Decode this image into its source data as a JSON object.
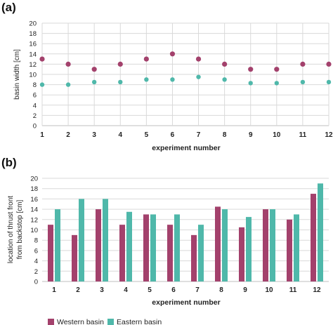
{
  "colors": {
    "western": "#a3416c",
    "eastern": "#4fb8aa"
  },
  "chart_data": [
    {
      "panel_label": "(a)",
      "type": "scatter",
      "xlabel": "experiment number",
      "ylabel": "basin width [cm]",
      "categories": [
        "1",
        "2",
        "3",
        "4",
        "5",
        "6",
        "7",
        "8",
        "9",
        "10",
        "11",
        "12"
      ],
      "ylim": [
        0,
        20
      ],
      "yticks": [
        "0",
        "2",
        "4",
        "6",
        "8",
        "10",
        "12",
        "14",
        "16",
        "18",
        "20"
      ],
      "grid": true,
      "series": [
        {
          "key": "western",
          "values": [
            13,
            12,
            11,
            12,
            13,
            14,
            13,
            12,
            11,
            11,
            12,
            12
          ]
        },
        {
          "key": "eastern",
          "values": [
            8,
            8,
            8.5,
            8.5,
            9,
            9,
            9.5,
            9,
            8.3,
            8.3,
            8.5,
            8.5
          ]
        }
      ]
    },
    {
      "panel_label": "(b)",
      "type": "bar",
      "xlabel": "experiment number",
      "ylabel_lines": [
        "location of thrust front",
        "from backstop [cm]"
      ],
      "categories": [
        "1",
        "2",
        "3",
        "4",
        "5",
        "6",
        "7",
        "8",
        "9",
        "10",
        "11",
        "12"
      ],
      "ylim": [
        0,
        20
      ],
      "yticks": [
        "0",
        "2",
        "4",
        "6",
        "8",
        "10",
        "12",
        "14",
        "16",
        "18",
        "20"
      ],
      "grid": true,
      "legend_position": "bottom",
      "series": [
        {
          "name": "Western basin",
          "key": "western",
          "values": [
            11,
            9,
            14,
            11,
            13,
            11,
            9,
            14.5,
            10.5,
            14,
            12,
            17
          ]
        },
        {
          "name": "Eastern basin",
          "key": "eastern",
          "values": [
            14,
            16,
            16,
            13.5,
            13,
            13,
            11,
            14,
            12.5,
            14,
            13,
            19
          ]
        }
      ]
    }
  ]
}
